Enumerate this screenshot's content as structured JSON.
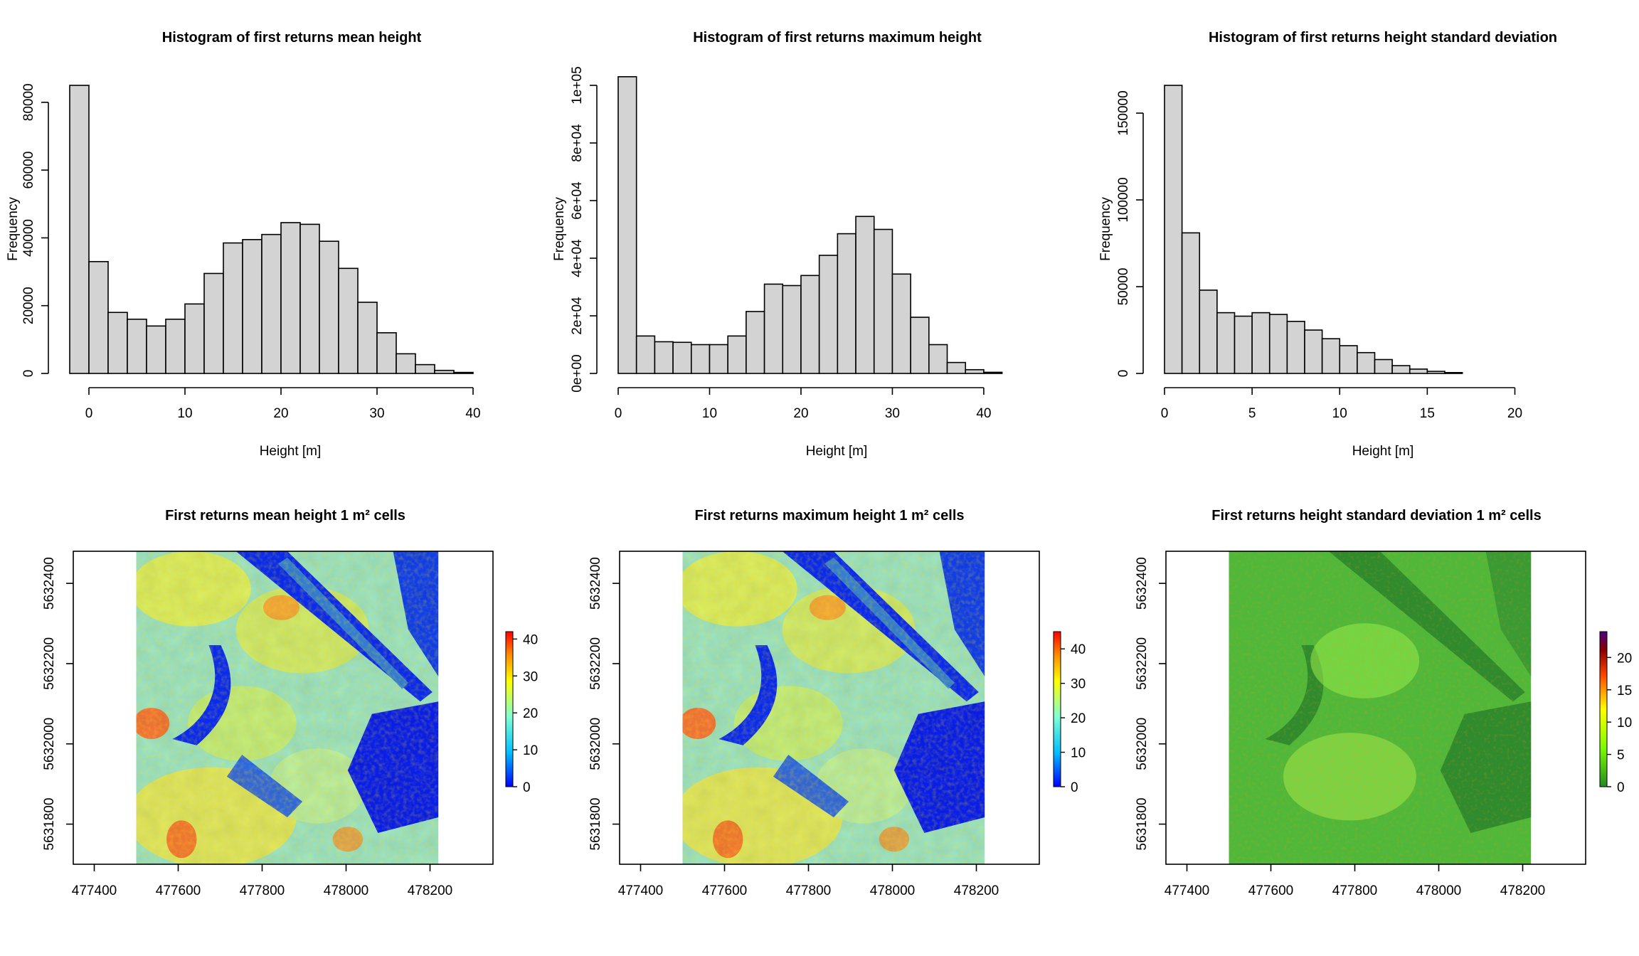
{
  "colors": {
    "bar_fill": "#d3d3d3",
    "axis": "#000000",
    "raster_palette_height": [
      "#0000ff",
      "#00bfff",
      "#7fffd4",
      "#ffff00",
      "#ff8c00",
      "#ff0000"
    ],
    "raster_palette_sd": [
      "#228b22",
      "#7cfc00",
      "#ffff00",
      "#ff4500",
      "#8b0000",
      "#4b0082"
    ]
  },
  "chart_data": [
    {
      "type": "bar",
      "title": "Histogram of first returns mean height",
      "xlabel": "Height [m]",
      "ylabel": "Frequency",
      "bin_width": 2,
      "bin_start": -2,
      "values": [
        85000,
        33000,
        18000,
        16000,
        14000,
        16000,
        20500,
        29500,
        38500,
        39500,
        41000,
        44500,
        44000,
        39000,
        31000,
        21000,
        12000,
        5800,
        2600,
        900,
        300
      ],
      "xlim": [
        -2,
        42
      ],
      "ylim": [
        0,
        85000
      ],
      "xticks": [
        0,
        10,
        20,
        30,
        40
      ],
      "xtick_labels": [
        "0",
        "10",
        "20",
        "30",
        "40"
      ],
      "yticks": [
        0,
        20000,
        40000,
        60000,
        80000
      ],
      "ytick_labels": [
        "0",
        "20000",
        "40000",
        "60000",
        "80000"
      ]
    },
    {
      "type": "bar",
      "title": "Histogram of first returns maximum height",
      "xlabel": "Height [m]",
      "ylabel": "Frequency",
      "bin_width": 2,
      "bin_start": 0,
      "values": [
        103000,
        13000,
        11000,
        10800,
        10000,
        10000,
        13000,
        21500,
        31000,
        30500,
        34000,
        41000,
        48500,
        54500,
        50000,
        34500,
        19500,
        10000,
        3800,
        1300,
        400
      ],
      "xlim": [
        0,
        46
      ],
      "ylim": [
        0,
        100000
      ],
      "xticks": [
        0,
        10,
        20,
        30,
        40
      ],
      "xtick_labels": [
        "0",
        "10",
        "20",
        "30",
        "40"
      ],
      "yticks": [
        0,
        20000,
        40000,
        60000,
        80000,
        100000
      ],
      "ytick_labels": [
        "0e+00",
        "2e+04",
        "4e+04",
        "6e+04",
        "8e+04",
        "1e+05"
      ]
    },
    {
      "type": "bar",
      "title": "Histogram of first returns height standard deviation",
      "xlabel": "Height [m]",
      "ylabel": "Frequency",
      "bin_width": 1,
      "bin_start": 0,
      "values": [
        166000,
        81000,
        48000,
        35000,
        33000,
        35000,
        34000,
        30000,
        25000,
        20000,
        16000,
        12000,
        8000,
        4500,
        2500,
        1200,
        500
      ],
      "xlim": [
        0,
        24
      ],
      "ylim": [
        0,
        166000
      ],
      "xticks": [
        0,
        5,
        10,
        15,
        20
      ],
      "xtick_labels": [
        "0",
        "5",
        "10",
        "15",
        "20"
      ],
      "yticks": [
        0,
        50000,
        100000,
        150000
      ],
      "ytick_labels": [
        "0",
        "50000",
        "100000",
        "150000"
      ]
    },
    {
      "type": "heatmap",
      "title": "First returns mean height 1 m² cells",
      "xlim": [
        477350,
        478350
      ],
      "ylim": [
        5631700,
        5632480
      ],
      "data_extent_x": [
        477500,
        478220
      ],
      "xticks": [
        477400,
        477600,
        477800,
        478000,
        478200
      ],
      "xtick_labels": [
        "477400",
        "477600",
        "477800",
        "478000",
        "478200"
      ],
      "yticks": [
        5631800,
        5632000,
        5632200,
        5632400
      ],
      "ytick_labels": [
        "5631800",
        "5632000",
        "5632200",
        "5632400"
      ],
      "legend_range": [
        0,
        42
      ],
      "legend_ticks": [
        0,
        10,
        20,
        30,
        40
      ],
      "legend_tick_labels": [
        "0",
        "10",
        "20",
        "30",
        "40"
      ],
      "palette": "height"
    },
    {
      "type": "heatmap",
      "title": "First returns maximum height 1 m² cells",
      "xlim": [
        477350,
        478350
      ],
      "ylim": [
        5631700,
        5632480
      ],
      "data_extent_x": [
        477500,
        478220
      ],
      "xticks": [
        477400,
        477600,
        477800,
        478000,
        478200
      ],
      "xtick_labels": [
        "477400",
        "477600",
        "477800",
        "478000",
        "478200"
      ],
      "yticks": [
        5631800,
        5632000,
        5632200,
        5632400
      ],
      "ytick_labels": [
        "5631800",
        "5632000",
        "5632200",
        "5632400"
      ],
      "legend_range": [
        0,
        45
      ],
      "legend_ticks": [
        0,
        10,
        20,
        30,
        40
      ],
      "legend_tick_labels": [
        "0",
        "10",
        "20",
        "30",
        "40"
      ],
      "palette": "height"
    },
    {
      "type": "heatmap",
      "title": "First returns height standard deviation 1 m² cells",
      "xlim": [
        477350,
        478350
      ],
      "ylim": [
        5631700,
        5632480
      ],
      "data_extent_x": [
        477500,
        478220
      ],
      "xticks": [
        477400,
        477600,
        477800,
        478000,
        478200
      ],
      "xtick_labels": [
        "477400",
        "477600",
        "477800",
        "478000",
        "478200"
      ],
      "yticks": [
        5631800,
        5632000,
        5632200,
        5632400
      ],
      "ytick_labels": [
        "5631800",
        "5632000",
        "5632200",
        "5632400"
      ],
      "legend_range": [
        0,
        24
      ],
      "legend_ticks": [
        0,
        5,
        10,
        15,
        20
      ],
      "legend_tick_labels": [
        "0",
        "5",
        "10",
        "15",
        "20"
      ],
      "palette": "sd"
    }
  ]
}
